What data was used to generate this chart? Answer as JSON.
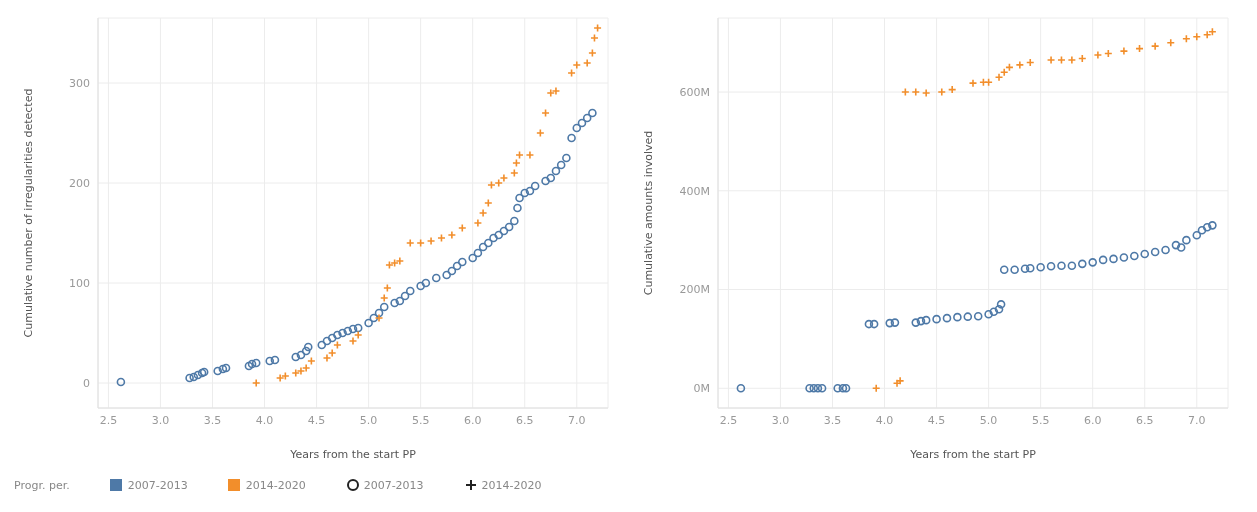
{
  "chart_data": [
    {
      "type": "scatter",
      "xlabel": "Years from the start PP",
      "ylabel": "Cumulative number of irregularities detected",
      "legend_title": "Progr. per.",
      "legend": "bottom",
      "grid": true,
      "xlim": [
        2.4,
        7.3
      ],
      "xticks": [
        {
          "value": 2.5,
          "label": "2.5"
        },
        {
          "value": 3,
          "label": "3.0"
        },
        3.5,
        {
          "value": 4,
          "label": "4.0"
        },
        4.5,
        {
          "value": 5,
          "label": "5.0"
        },
        5.5,
        {
          "value": 6,
          "label": "6.0"
        },
        6.5,
        {
          "value": 7,
          "label": "7.0"
        }
      ],
      "ylim": [
        -25,
        365
      ],
      "yticks": [
        0,
        100,
        200,
        300
      ],
      "series": [
        {
          "name": "2007-2013",
          "color": "#4e79a7",
          "marker": "circle",
          "x": [
            2.62,
            3.28,
            3.32,
            3.36,
            3.4,
            3.42,
            3.55,
            3.6,
            3.63,
            3.85,
            3.88,
            3.92,
            4.05,
            4.1,
            4.3,
            4.35,
            4.4,
            4.42,
            4.55,
            4.6,
            4.65,
            4.7,
            4.75,
            4.8,
            4.85,
            4.9,
            5.0,
            5.05,
            5.1,
            5.15,
            5.25,
            5.3,
            5.35,
            5.4,
            5.5,
            5.55,
            5.65,
            5.75,
            5.8,
            5.85,
            5.9,
            6.0,
            6.05,
            6.1,
            6.15,
            6.2,
            6.25,
            6.3,
            6.35,
            6.4,
            6.43,
            6.45,
            6.5,
            6.55,
            6.6,
            6.7,
            6.75,
            6.8,
            6.85,
            6.9,
            6.95,
            7.0,
            7.05,
            7.1,
            7.15
          ],
          "values": [
            1,
            5,
            6,
            8,
            10,
            11,
            12,
            14,
            15,
            17,
            19,
            20,
            22,
            23,
            26,
            28,
            32,
            36,
            38,
            42,
            45,
            48,
            50,
            52,
            54,
            55,
            60,
            65,
            70,
            76,
            80,
            82,
            87,
            92,
            97,
            100,
            105,
            108,
            112,
            117,
            121,
            125,
            130,
            136,
            140,
            145,
            148,
            152,
            156,
            162,
            175,
            185,
            190,
            192,
            197,
            202,
            205,
            212,
            218,
            225,
            245,
            255,
            260,
            265,
            270
          ]
        },
        {
          "name": "2014-2020",
          "color": "#f28e2b",
          "marker": "cross",
          "x": [
            3.92,
            4.15,
            4.2,
            4.3,
            4.35,
            4.4,
            4.45,
            4.6,
            4.65,
            4.7,
            4.85,
            4.9,
            5.1,
            5.15,
            5.18,
            5.2,
            5.25,
            5.3,
            5.4,
            5.5,
            5.6,
            5.7,
            5.8,
            5.9,
            6.05,
            6.1,
            6.15,
            6.18,
            6.25,
            6.3,
            6.4,
            6.42,
            6.45,
            6.55,
            6.65,
            6.7,
            6.75,
            6.8,
            6.95,
            7.0,
            7.1,
            7.15,
            7.17,
            7.2
          ],
          "values": [
            0,
            5,
            7,
            10,
            12,
            15,
            22,
            25,
            30,
            38,
            42,
            48,
            65,
            85,
            95,
            118,
            120,
            122,
            140,
            140,
            142,
            145,
            148,
            155,
            160,
            170,
            180,
            198,
            200,
            205,
            210,
            220,
            228,
            228,
            250,
            270,
            290,
            292,
            310,
            318,
            320,
            330,
            345,
            355
          ]
        }
      ]
    },
    {
      "type": "scatter",
      "xlabel": "Years from the start PP",
      "ylabel": "Cumulative amounts involved",
      "grid": true,
      "xlim": [
        2.4,
        7.3
      ],
      "xticks": [
        {
          "value": 2.5,
          "label": "2.5"
        },
        {
          "value": 3,
          "label": "3.0"
        },
        3.5,
        {
          "value": 4,
          "label": "4.0"
        },
        4.5,
        {
          "value": 5,
          "label": "5.0"
        },
        5.5,
        {
          "value": 6,
          "label": "6.0"
        },
        6.5,
        {
          "value": 7,
          "label": "7.0"
        }
      ],
      "ylim": [
        -40000000,
        750000000
      ],
      "yticks": [
        {
          "value": 0,
          "label": "0M"
        },
        {
          "value": 200000000,
          "label": "200M"
        },
        {
          "value": 400000000,
          "label": "400M"
        },
        {
          "value": 600000000,
          "label": "600M"
        }
      ],
      "series": [
        {
          "color": "#4e79a7",
          "marker": "circle",
          "x": [
            2.62,
            3.28,
            3.32,
            3.36,
            3.4,
            3.55,
            3.6,
            3.63,
            3.85,
            3.9,
            4.05,
            4.1,
            4.3,
            4.35,
            4.4,
            4.5,
            4.6,
            4.7,
            4.8,
            4.9,
            5.0,
            5.05,
            5.1,
            5.12,
            5.15,
            5.25,
            5.35,
            5.4,
            5.5,
            5.6,
            5.7,
            5.8,
            5.9,
            6.0,
            6.1,
            6.2,
            6.3,
            6.4,
            6.5,
            6.6,
            6.7,
            6.8,
            6.85,
            6.9,
            7.0,
            7.05,
            7.1,
            7.15
          ],
          "values": [
            0,
            0,
            0,
            0,
            0,
            0,
            0,
            0,
            130000000,
            130000000,
            132000000,
            133000000,
            133000000,
            136000000,
            138000000,
            140000000,
            142000000,
            144000000,
            145000000,
            146000000,
            150000000,
            155000000,
            160000000,
            170000000,
            240000000,
            240000000,
            242000000,
            243000000,
            245000000,
            247000000,
            248000000,
            248000000,
            252000000,
            255000000,
            260000000,
            262000000,
            265000000,
            268000000,
            272000000,
            276000000,
            280000000,
            290000000,
            285000000,
            300000000,
            310000000,
            320000000,
            326000000,
            330000000
          ]
        },
        {
          "color": "#f28e2b",
          "marker": "cross",
          "x": [
            3.92,
            4.12,
            4.15,
            4.2,
            4.3,
            4.4,
            4.55,
            4.65,
            4.85,
            4.95,
            5.0,
            5.1,
            5.15,
            5.2,
            5.3,
            5.4,
            5.6,
            5.7,
            5.8,
            5.9,
            6.05,
            6.15,
            6.3,
            6.45,
            6.6,
            6.75,
            6.9,
            7.0,
            7.1,
            7.15
          ],
          "values": [
            0,
            10000000,
            15000000,
            600000000,
            600000000,
            598000000,
            600000000,
            605000000,
            618000000,
            620000000,
            620000000,
            630000000,
            640000000,
            650000000,
            655000000,
            660000000,
            665000000,
            665000000,
            665000000,
            668000000,
            675000000,
            678000000,
            683000000,
            688000000,
            693000000,
            700000000,
            708000000,
            712000000,
            716000000,
            722000000
          ]
        }
      ]
    }
  ]
}
